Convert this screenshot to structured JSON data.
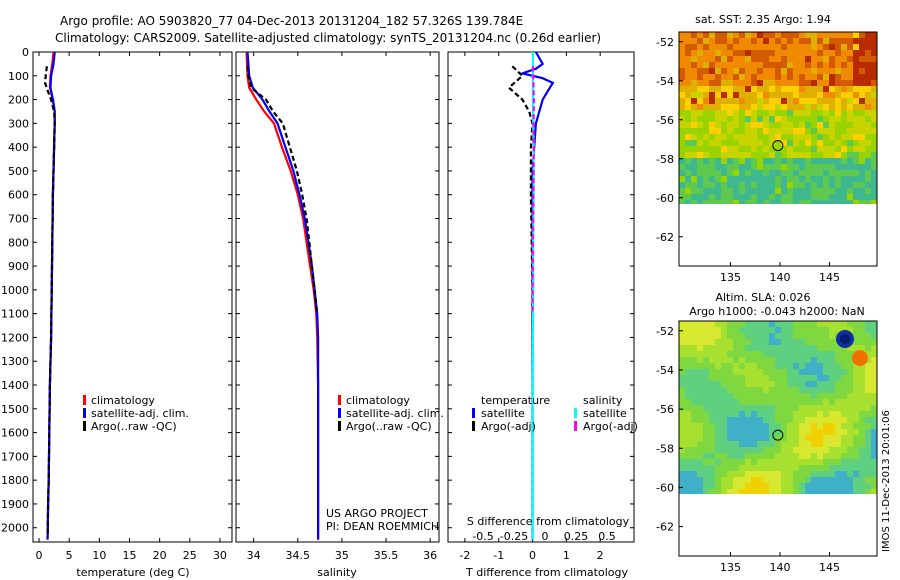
{
  "header": {
    "title_line1": "Argo profile: AO 5903820_77 04-Dec-2013 20131204_182 57.326S 139.784E",
    "title_line2": "Climatology: CARS2009. Satellite-adjusted climatology: synTS_20131204.nc (0.26d earlier)"
  },
  "chart_data": [
    {
      "type": "line",
      "name": "temperature-profile",
      "xlabel": "temperature (deg C)",
      "ylabel": "",
      "xlim": [
        -1,
        32
      ],
      "ylim": [
        2060,
        0
      ],
      "xticks": [
        "0",
        "5",
        "10",
        "15",
        "20",
        "25",
        "30"
      ],
      "xtick_values": [
        0,
        5,
        10,
        15,
        20,
        25,
        30
      ],
      "yticks": [
        "0",
        "100",
        "200",
        "300",
        "400",
        "500",
        "600",
        "700",
        "800",
        "900",
        "1000",
        "1100",
        "1200",
        "1300",
        "1400",
        "1500",
        "1600",
        "1700",
        "1800",
        "1900",
        "2000"
      ],
      "ytick_values": [
        0,
        100,
        200,
        300,
        400,
        500,
        600,
        700,
        800,
        900,
        1000,
        1100,
        1200,
        1300,
        1400,
        1500,
        1600,
        1700,
        1800,
        1900,
        2000
      ],
      "legend": [
        "climatology",
        "satellite-adj. clim.",
        "Argo(..raw -QC)"
      ],
      "series": [
        {
          "name": "climatology",
          "color": "#ff0000",
          "dashed": false,
          "x": [
            2.4,
            2.2,
            1.9,
            1.8,
            2.3,
            2.6,
            2.6,
            2.5,
            2.4,
            2.3,
            2.2,
            2.1,
            2.0,
            1.8,
            1.7,
            1.6,
            1.5,
            1.45,
            1.4
          ],
          "y": [
            0,
            50,
            100,
            150,
            200,
            250,
            300,
            400,
            500,
            600,
            800,
            1000,
            1200,
            1400,
            1600,
            1800,
            1900,
            2000,
            2050
          ]
        },
        {
          "name": "satellite-adj. clim.",
          "color": "#0000ff",
          "dashed": false,
          "x": [
            2.6,
            2.4,
            2.0,
            1.9,
            2.3,
            2.6,
            2.6,
            2.5,
            2.4,
            2.3,
            2.2,
            2.1,
            2.0,
            1.8,
            1.7,
            1.6,
            1.5,
            1.45,
            1.4
          ],
          "y": [
            0,
            50,
            100,
            150,
            200,
            250,
            300,
            400,
            500,
            600,
            800,
            1000,
            1200,
            1400,
            1600,
            1800,
            1900,
            2000,
            2050
          ]
        },
        {
          "name": "Argo(..raw -QC)",
          "color": "#000000",
          "dashed": true,
          "x": [
            1.3,
            1.2,
            1.1,
            1.0,
            1.4,
            2.0,
            2.5,
            2.6,
            2.5,
            2.4,
            2.3,
            2.2,
            2.1,
            2.0,
            1.8,
            1.7,
            1.6,
            1.5,
            1.45,
            1.4
          ],
          "y": [
            60,
            80,
            100,
            130,
            160,
            200,
            250,
            300,
            400,
            500,
            600,
            800,
            1000,
            1200,
            1400,
            1600,
            1800,
            1900,
            2000,
            2040
          ]
        }
      ]
    },
    {
      "type": "line",
      "name": "salinity-profile",
      "xlabel": "salinity",
      "ylabel": "",
      "xlim": [
        33.8,
        36.1
      ],
      "ylim": [
        2060,
        0
      ],
      "xticks": [
        "34",
        "34.5",
        "35",
        "35.5",
        "36"
      ],
      "xtick_values": [
        34,
        34.5,
        35,
        35.5,
        36
      ],
      "legend": [
        "climatology",
        "satellite-adj. clim.",
        "Argo(..raw -QC)"
      ],
      "annotations": [
        "US ARGO PROJECT",
        "PI: DEAN ROEMMICH"
      ],
      "series": [
        {
          "name": "climatology",
          "color": "#ff0000",
          "dashed": false,
          "x": [
            33.92,
            33.93,
            33.95,
            34.03,
            34.12,
            34.23,
            34.32,
            34.42,
            34.5,
            34.56,
            34.6,
            34.64,
            34.68,
            34.71,
            34.72,
            34.73,
            34.73
          ],
          "y": [
            0,
            100,
            150,
            200,
            250,
            300,
            400,
            500,
            600,
            700,
            800,
            900,
            1000,
            1100,
            1200,
            1400,
            2050
          ]
        },
        {
          "name": "satellite-adj. clim.",
          "color": "#0000ff",
          "dashed": false,
          "x": [
            33.93,
            33.95,
            33.99,
            34.1,
            34.18,
            34.27,
            34.36,
            34.45,
            34.52,
            34.58,
            34.62,
            34.66,
            34.69,
            34.72,
            34.73,
            34.73,
            34.73
          ],
          "y": [
            0,
            100,
            150,
            200,
            250,
            300,
            400,
            500,
            600,
            700,
            800,
            900,
            1000,
            1100,
            1200,
            1400,
            2050
          ]
        },
        {
          "name": "Argo(..raw -QC)",
          "color": "#000000",
          "dashed": true,
          "x": [
            33.93,
            33.94,
            33.97,
            34.14,
            34.22,
            34.33,
            34.41,
            34.49,
            34.55,
            34.6,
            34.63,
            34.66,
            34.69,
            34.72
          ],
          "y": [
            60,
            100,
            150,
            200,
            250,
            300,
            400,
            500,
            600,
            700,
            800,
            900,
            1000,
            1100
          ]
        }
      ]
    },
    {
      "type": "line",
      "name": "difference-profile",
      "xlabel": "T difference from climatology",
      "xlabel_top": "S difference from climatology",
      "xlim": [
        -2.5,
        3.0
      ],
      "ylim": [
        2060,
        0
      ],
      "xticks": [
        "-2",
        "-1",
        "0",
        "1",
        "2"
      ],
      "xtick_values": [
        -2,
        -1,
        0,
        1,
        2
      ],
      "xticks_s": [
        "-0.5",
        "-0.25",
        "0",
        "0.25",
        "0.5"
      ],
      "xtick_values_s": [
        -0.5,
        -0.25,
        0,
        0.25,
        0.5
      ],
      "legend_groups": [
        "temperature",
        "salinity"
      ],
      "legend": [
        "satellite",
        "Argo(-adj)",
        "satellite",
        "Argo(-adj)"
      ],
      "series": [
        {
          "name": "temperature satellite",
          "color": "#0000ff",
          "dashed": false,
          "x": [
            0.1,
            0.3,
            0.1,
            -0.3,
            0.3,
            0.6,
            0.3,
            0.1,
            0.0,
            0.0,
            0.0,
            0.0
          ],
          "y": [
            0,
            50,
            70,
            90,
            110,
            130,
            200,
            300,
            500,
            1000,
            1500,
            2050
          ]
        },
        {
          "name": "temperature Argo(-adj)",
          "color": "#000000",
          "dashed": true,
          "x": [
            -0.6,
            -0.3,
            -0.7,
            -0.3,
            -0.1,
            0.0,
            -0.05,
            -0.05,
            0.0,
            0.0
          ],
          "y": [
            60,
            100,
            150,
            200,
            250,
            300,
            400,
            600,
            1000,
            2040
          ]
        },
        {
          "name": "salinity satellite",
          "color": "#00ffff",
          "dashed": false,
          "x": [
            0.01,
            0.01,
            0.01,
            0.02,
            0.03,
            0.03,
            0.02,
            0.02,
            0.0,
            0.0
          ],
          "y": [
            0,
            100,
            200,
            300,
            400,
            600,
            800,
            1000,
            1500,
            2050
          ]
        },
        {
          "name": "salinity Argo(-adj)",
          "color": "#ff00ff",
          "dashed": true,
          "x": [
            0.01,
            0.04,
            0.03,
            0.03,
            0.01,
            0.0
          ],
          "y": [
            60,
            200,
            300,
            500,
            800,
            1100
          ]
        }
      ]
    },
    {
      "type": "heatmap",
      "name": "sst-map",
      "title": "sat. SST: 2.35 Argo: 1.94",
      "xticks": [
        "135",
        "140",
        "145"
      ],
      "xtick_values": [
        135,
        140,
        145
      ],
      "yticks": [
        "-52",
        "-54",
        "-56",
        "-58",
        "-60",
        "-62"
      ],
      "ytick_values": [
        -52,
        -54,
        -56,
        -58,
        -60,
        -62
      ],
      "xlim": [
        129.8,
        149.8
      ],
      "ylim": [
        -63.5,
        -51.5
      ],
      "marker": [
        139.784,
        -57.326
      ]
    },
    {
      "type": "heatmap",
      "name": "sla-map",
      "title": "Altim. SLA: 0.026",
      "subtitle": "Argo h1000: -0.043 h2000: NaN",
      "xticks": [
        "135",
        "140",
        "145"
      ],
      "xtick_values": [
        135,
        140,
        145
      ],
      "yticks": [
        "-52",
        "-54",
        "-56",
        "-58",
        "-60",
        "-62"
      ],
      "ytick_values": [
        -52,
        -54,
        -56,
        -58,
        -60,
        -62
      ],
      "xlim": [
        129.8,
        149.8
      ],
      "ylim": [
        -63.5,
        -51.5
      ],
      "marker": [
        139.784,
        -57.326
      ]
    }
  ],
  "footer": {
    "side_label": "IMOS 11-Dec-2013 20:01:06"
  }
}
